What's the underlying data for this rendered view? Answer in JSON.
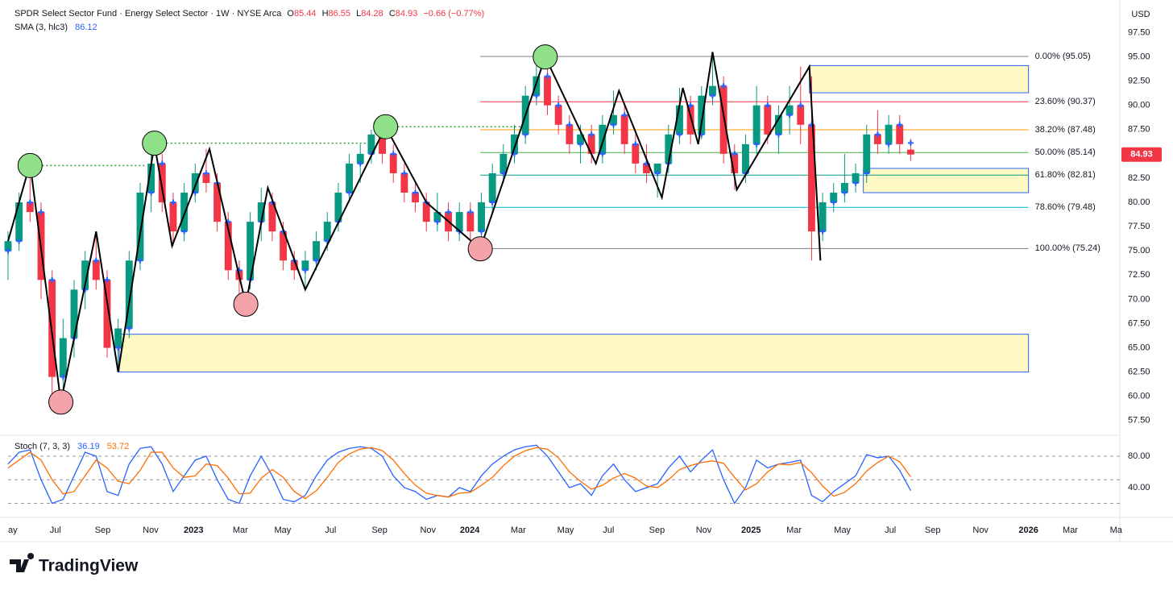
{
  "chart_data": [
    {
      "type": "candlestick",
      "title": "SPDR Select Sector Fund · Energy Select Sector · 1W · NYSE Arca",
      "ohlc_labels": [
        "O",
        "H",
        "L",
        "C"
      ],
      "change": "−0.66 (−0.77%)",
      "sma_label": "SMA (3, hlc3)",
      "currency": "USD",
      "up_color": "#089981",
      "down_color": "#f23645",
      "sma_color": "#2962ff",
      "candles": [
        [
          75,
          77,
          72,
          76
        ],
        [
          76,
          81,
          75,
          80
        ],
        [
          80,
          84,
          78,
          79
        ],
        [
          79,
          80,
          70,
          72
        ],
        [
          72,
          73,
          59.4,
          62
        ],
        [
          62,
          68,
          60,
          66
        ],
        [
          66,
          72,
          64,
          71
        ],
        [
          71,
          75,
          69,
          74
        ],
        [
          74,
          77,
          71,
          72
        ],
        [
          72,
          73,
          64,
          65
        ],
        [
          65,
          68,
          62.5,
          67
        ],
        [
          67,
          75,
          66,
          74
        ],
        [
          74,
          82,
          73,
          81
        ],
        [
          81,
          86,
          79,
          84
        ],
        [
          84,
          85,
          79,
          80
        ],
        [
          80,
          81,
          75.5,
          77
        ],
        [
          77,
          82,
          76,
          81
        ],
        [
          81,
          84,
          80,
          83
        ],
        [
          83,
          85.5,
          81,
          82
        ],
        [
          82,
          83,
          77,
          78
        ],
        [
          78,
          79,
          72,
          73
        ],
        [
          73,
          74,
          69.5,
          72
        ],
        [
          72,
          79,
          71,
          78
        ],
        [
          78,
          81.5,
          76,
          80
        ],
        [
          80,
          81,
          76,
          77
        ],
        [
          77,
          78,
          73,
          74
        ],
        [
          74,
          75,
          72,
          73
        ],
        [
          73,
          75,
          71,
          74
        ],
        [
          74,
          77,
          73,
          76
        ],
        [
          76,
          79,
          75,
          78
        ],
        [
          78,
          82,
          77,
          81
        ],
        [
          81,
          85,
          80,
          84
        ],
        [
          84,
          86,
          82,
          85
        ],
        [
          85,
          87.5,
          84,
          87
        ],
        [
          87,
          87.8,
          84,
          85
        ],
        [
          85,
          86,
          82,
          83
        ],
        [
          83,
          84,
          80,
          81
        ],
        [
          81,
          82,
          79,
          80
        ],
        [
          80,
          81,
          77,
          78
        ],
        [
          78,
          81,
          77,
          79
        ],
        [
          79,
          80,
          76,
          77
        ],
        [
          77,
          80,
          76,
          79
        ],
        [
          79,
          80,
          75.2,
          77
        ],
        [
          77,
          81,
          76,
          80
        ],
        [
          80,
          84,
          79,
          83
        ],
        [
          83,
          86,
          82,
          85
        ],
        [
          85,
          88,
          84,
          87
        ],
        [
          87,
          92,
          86,
          91
        ],
        [
          91,
          95,
          90,
          93
        ],
        [
          93,
          94,
          89,
          90
        ],
        [
          90,
          91,
          87,
          88
        ],
        [
          88,
          89,
          85,
          86
        ],
        [
          86,
          88,
          84,
          87
        ],
        [
          87,
          88,
          84,
          85
        ],
        [
          85,
          89,
          84,
          88
        ],
        [
          88,
          91.5,
          87,
          89
        ],
        [
          89,
          90,
          85,
          86
        ],
        [
          86,
          87,
          83,
          84
        ],
        [
          84,
          86,
          82,
          83
        ],
        [
          83,
          84,
          80.5,
          84
        ],
        [
          84,
          88,
          83,
          87
        ],
        [
          87,
          91.8,
          86,
          90
        ],
        [
          90,
          91,
          86,
          87
        ],
        [
          87,
          92,
          86.5,
          91
        ],
        [
          91,
          95.5,
          90,
          92
        ],
        [
          92,
          93,
          84,
          85
        ],
        [
          85,
          86,
          81.3,
          83
        ],
        [
          83,
          87,
          82,
          86
        ],
        [
          86,
          92,
          85,
          90
        ],
        [
          90,
          91,
          86,
          87
        ],
        [
          87,
          90,
          85,
          89
        ],
        [
          89,
          92,
          87,
          90
        ],
        [
          90,
          94,
          86,
          88
        ],
        [
          88,
          93,
          74,
          77
        ],
        [
          77,
          81,
          76,
          80
        ],
        [
          80,
          82,
          79,
          81
        ],
        [
          81,
          85,
          80,
          82
        ],
        [
          82,
          84,
          81,
          83
        ],
        [
          83,
          88,
          82,
          87
        ],
        [
          87,
          89.5,
          85,
          86
        ],
        [
          86,
          89,
          85,
          88
        ],
        [
          88,
          89,
          85,
          86
        ],
        [
          85.44,
          86.55,
          84.28,
          84.93
        ]
      ],
      "sma": [
        75,
        76,
        80,
        79,
        72,
        62,
        66,
        71,
        74,
        72,
        65,
        67,
        74,
        81,
        84,
        80,
        77,
        81,
        83,
        82,
        78,
        73,
        72,
        78,
        80,
        77,
        74,
        73,
        74,
        76,
        78,
        81,
        84,
        85,
        87,
        85,
        83,
        81,
        80,
        78,
        79,
        77,
        79,
        77,
        80,
        83,
        85,
        87,
        91,
        93,
        90,
        88,
        86,
        87,
        85,
        88,
        89,
        86,
        84,
        83,
        84,
        87,
        90,
        87,
        91,
        92,
        85,
        83,
        86,
        90,
        87,
        89,
        90,
        88,
        77,
        80,
        81,
        82,
        83,
        87,
        86,
        88,
        86.12
      ],
      "xlim": [
        0,
        101
      ],
      "xticks": [
        {
          "value": 0,
          "label": "ay"
        },
        {
          "value": 4.3,
          "label": "Jul"
        },
        {
          "value": 8.6,
          "label": "Sep"
        },
        {
          "value": 12.95,
          "label": "Nov"
        },
        {
          "value": 16.85,
          "label": "2023"
        },
        {
          "value": 21.1,
          "label": "Mar"
        },
        {
          "value": 24.95,
          "label": "May"
        },
        {
          "value": 29.3,
          "label": "Jul"
        },
        {
          "value": 33.75,
          "label": "Sep"
        },
        {
          "value": 38.15,
          "label": "Nov"
        },
        {
          "value": 41.95,
          "label": "2024"
        },
        {
          "value": 46.35,
          "label": "Mar"
        },
        {
          "value": 50.65,
          "label": "May"
        },
        {
          "value": 54.55,
          "label": "Jul"
        },
        {
          "value": 58.95,
          "label": "Sep"
        },
        {
          "value": 63.2,
          "label": "Nov"
        },
        {
          "value": 67.5,
          "label": "2025"
        },
        {
          "value": 71.4,
          "label": "Mar"
        },
        {
          "value": 75.8,
          "label": "May"
        },
        {
          "value": 80.15,
          "label": "Jul"
        },
        {
          "value": 84,
          "label": "Sep"
        },
        {
          "value": 88.35,
          "label": "Nov"
        },
        {
          "value": 92.7,
          "label": "2026"
        },
        {
          "value": 96.5,
          "label": "Mar"
        },
        {
          "value": 100.65,
          "label": "Ma"
        }
      ],
      "ylim": [
        56.4,
        100.2
      ],
      "yticks": [
        {
          "value": 57.5,
          "label": "57.50"
        },
        {
          "value": 60,
          "label": "60.00"
        },
        {
          "value": 62.5,
          "label": "62.50"
        },
        {
          "value": 65,
          "label": "65.00"
        },
        {
          "value": 67.5,
          "label": "67.50"
        },
        {
          "value": 70,
          "label": "70.00"
        },
        {
          "value": 72.5,
          "label": "72.50"
        },
        {
          "value": 75,
          "label": "75.00"
        },
        {
          "value": 77.5,
          "label": "77.50"
        },
        {
          "value": 80,
          "label": "80.00"
        },
        {
          "value": 82.5,
          "label": "82.50"
        },
        {
          "value": 85,
          "label": "85.00"
        },
        {
          "value": 87.5,
          "label": "87.50"
        },
        {
          "value": 90,
          "label": "90.00"
        },
        {
          "value": 92.5,
          "label": "92.50"
        },
        {
          "value": 95,
          "label": "95.00"
        },
        {
          "value": 97.5,
          "label": "97.50"
        }
      ],
      "fib_x": [
        42.9,
        92.7
      ],
      "fib": [
        {
          "label": "0.00% (95.05)",
          "value": 95.05,
          "color": "#787b86"
        },
        {
          "label": "23.60% (90.37)",
          "value": 90.37,
          "color": "#f23645"
        },
        {
          "label": "38.20% (87.48)",
          "value": 87.48,
          "color": "#ff9800"
        },
        {
          "label": "50.00% (85.14)",
          "value": 85.14,
          "color": "#4caf50"
        },
        {
          "label": "61.80% (82.81)",
          "value": 82.81,
          "color": "#089981"
        },
        {
          "label": "78.60% (79.48)",
          "value": 79.48,
          "color": "#00bcd4"
        },
        {
          "label": "100.00% (75.24)",
          "value": 75.24,
          "color": "#787b86"
        }
      ],
      "zigzag": {
        "x": [
          0,
          2,
          4.8,
          8,
          10,
          13.3,
          14.9,
          18.3,
          21.6,
          23.6,
          27,
          34.3,
          38,
          42.9,
          48.8,
          53.4,
          55.5,
          59.4,
          61.3,
          62.7,
          64,
          66.2,
          72.8,
          73.8
        ],
        "y": [
          76,
          84,
          59.4,
          77,
          62.5,
          86,
          75.5,
          85.5,
          69.5,
          81.5,
          71,
          87.8,
          80,
          75.2,
          95,
          84,
          91.5,
          80.5,
          91.8,
          86,
          95.5,
          81.3,
          94,
          74
        ]
      },
      "pivots": [
        {
          "x": 2,
          "y": 83.8,
          "color": "#90e08a"
        },
        {
          "x": 4.8,
          "y": 59.4,
          "color": "#f5a3ab"
        },
        {
          "x": 13.3,
          "y": 86.1,
          "color": "#90e08a"
        },
        {
          "x": 21.6,
          "y": 69.5,
          "color": "#f5a3ab"
        },
        {
          "x": 34.3,
          "y": 87.8,
          "color": "#90e08a"
        },
        {
          "x": 42.9,
          "y": 75.2,
          "color": "#f5a3ab"
        },
        {
          "x": 48.8,
          "y": 95,
          "color": "#90e08a"
        }
      ],
      "dotted": [
        {
          "x": [
            2,
            12.5
          ],
          "y": 83.8
        },
        {
          "x": [
            13.3,
            33.5
          ],
          "y": 86.1
        },
        {
          "x": [
            34.3,
            47
          ],
          "y": 87.8
        }
      ],
      "zones": [
        {
          "x": [
            72.8,
            92.7
          ],
          "y": [
            91.3,
            94.1
          ]
        },
        {
          "x": [
            77.7,
            92.7
          ],
          "y": [
            81,
            83.5
          ]
        },
        {
          "x": [
            10.1,
            92.7
          ],
          "y": [
            62.5,
            66.4
          ]
        }
      ]
    },
    {
      "type": "line",
      "title": "Stoch (7, 3, 3)",
      "series": [
        {
          "color": "#2962ff",
          "values": [
            70,
            85,
            88,
            50,
            20,
            25,
            55,
            85,
            80,
            35,
            30,
            70,
            90,
            92,
            70,
            35,
            55,
            75,
            80,
            50,
            25,
            20,
            55,
            80,
            55,
            25,
            22,
            30,
            55,
            75,
            85,
            90,
            92,
            90,
            80,
            55,
            40,
            35,
            25,
            30,
            28,
            40,
            35,
            55,
            70,
            80,
            88,
            92,
            94,
            80,
            60,
            40,
            45,
            30,
            55,
            70,
            50,
            35,
            40,
            45,
            65,
            80,
            60,
            75,
            88,
            50,
            20,
            40,
            75,
            65,
            70,
            72,
            75,
            30,
            22,
            35,
            45,
            55,
            82,
            78,
            80,
            62,
            36.19
          ]
        },
        {
          "color": "#ff6d00",
          "values": [
            65,
            75,
            85,
            75,
            50,
            32,
            35,
            55,
            75,
            65,
            48,
            45,
            62,
            85,
            85,
            65,
            53,
            55,
            70,
            68,
            52,
            32,
            33,
            52,
            63,
            53,
            35,
            26,
            36,
            53,
            72,
            83,
            89,
            91,
            87,
            75,
            58,
            43,
            33,
            30,
            28,
            33,
            34,
            43,
            53,
            68,
            80,
            87,
            91,
            89,
            78,
            60,
            48,
            38,
            43,
            52,
            58,
            52,
            42,
            40,
            50,
            63,
            68,
            72,
            74,
            71,
            53,
            37,
            45,
            60,
            70,
            69,
            72,
            59,
            42,
            29,
            34,
            45,
            61,
            72,
            80,
            73,
            53.72
          ]
        }
      ],
      "ylim": [
        2,
        101.5
      ],
      "yticks": [
        {
          "value": 40,
          "label": "40.00"
        },
        {
          "value": 80,
          "label": "80.00"
        }
      ],
      "bands": [
        20,
        50,
        80
      ]
    }
  ],
  "brand": "TradingView"
}
